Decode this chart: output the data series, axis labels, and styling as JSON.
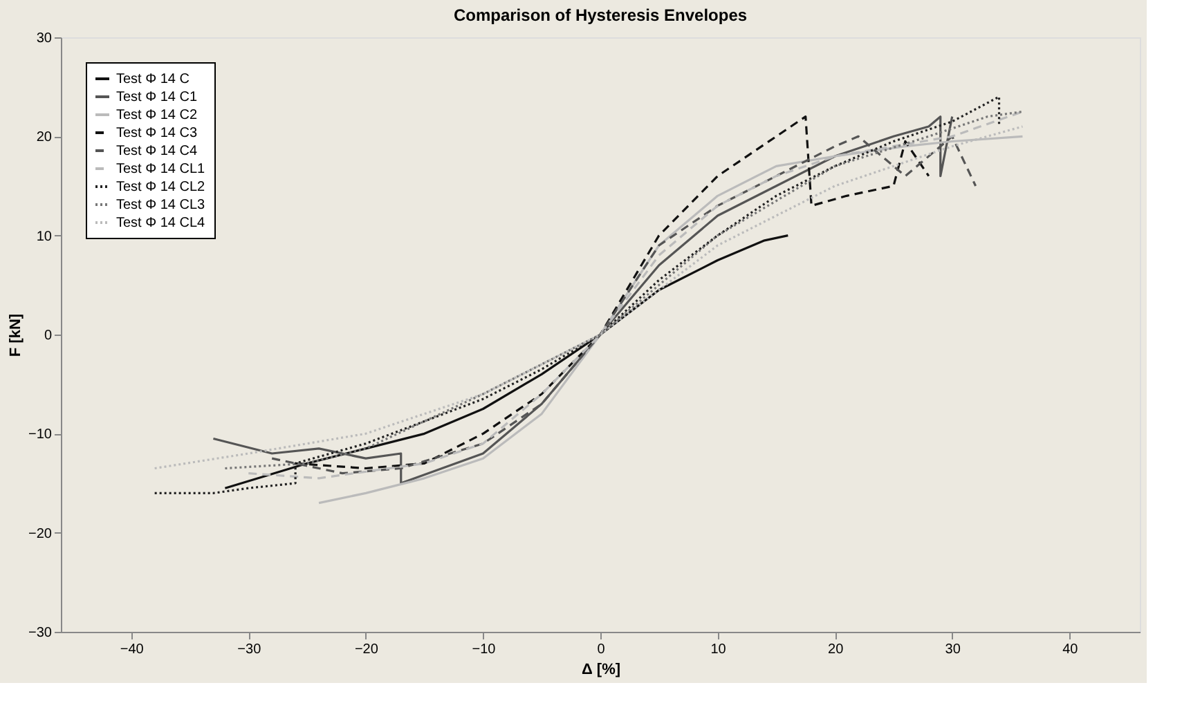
{
  "chart_data": {
    "type": "line",
    "title": "Comparison of Hysteresis Envelopes",
    "xlabel": "Δ [%]",
    "ylabel": "F [kN]",
    "xlim": [
      -46,
      46
    ],
    "xticks": [
      -40,
      -30,
      -20,
      -10,
      0,
      10,
      20,
      30,
      40
    ],
    "ylim": [
      -30,
      30
    ],
    "yticks": [
      -30,
      -20,
      -10,
      0,
      10,
      20,
      30
    ],
    "grid": false,
    "legend": "top left",
    "marker": "none",
    "series": [
      {
        "name": "Test Φ 14 C",
        "color": "#111111",
        "line_style": "solid",
        "x": [
          -32,
          -25,
          -20,
          -15,
          -10,
          -5,
          0,
          5,
          10,
          14,
          16
        ],
        "values": [
          -15.5,
          -13,
          -11.5,
          -10,
          -7.5,
          -4,
          0,
          4.5,
          7.5,
          9.5,
          10
        ]
      },
      {
        "name": "Test Φ 14 C1",
        "color": "#555555",
        "line_style": "solid",
        "x": [
          -33,
          -28,
          -24,
          -20,
          -17,
          -17,
          -10,
          -5,
          0,
          5,
          10,
          15,
          20,
          25,
          28,
          29,
          29,
          30
        ],
        "values": [
          -10.5,
          -12,
          -11.5,
          -12.5,
          -12,
          -15,
          -12,
          -7,
          0,
          7,
          12,
          15,
          18,
          20,
          21,
          22,
          16,
          22
        ]
      },
      {
        "name": "Test Φ 14 C2",
        "color": "#bbbbbb",
        "line_style": "solid",
        "x": [
          -24,
          -20,
          -15,
          -10,
          -5,
          0,
          5,
          10,
          15,
          20,
          26,
          30,
          36
        ],
        "values": [
          -17,
          -16,
          -14.5,
          -12.5,
          -8,
          0,
          9,
          14,
          17,
          18,
          19,
          19.5,
          20
        ]
      },
      {
        "name": "Test Φ 14 C3",
        "color": "#111111",
        "line_style": "dashed",
        "x": [
          -26,
          -20,
          -15,
          -10,
          -5,
          0,
          5,
          10,
          15,
          17.5,
          18,
          21,
          25,
          26,
          28
        ],
        "values": [
          -13,
          -13.5,
          -13,
          -10,
          -6,
          0,
          10,
          16,
          20,
          22,
          13,
          14,
          15,
          19.5,
          16
        ]
      },
      {
        "name": "Test Φ 14 C4",
        "color": "#555555",
        "line_style": "dashed",
        "x": [
          -28,
          -22,
          -17,
          -10,
          -5,
          0,
          5,
          10,
          15,
          20,
          22,
          26,
          30,
          32
        ],
        "values": [
          -12.5,
          -14,
          -13.5,
          -11,
          -7,
          0,
          9,
          13,
          16,
          19,
          20,
          16,
          20,
          15
        ]
      },
      {
        "name": "Test Φ 14 CL1",
        "color": "#bbbbbb",
        "line_style": "dashed",
        "x": [
          -30,
          -24,
          -15,
          -10,
          -5,
          0,
          5,
          10,
          15,
          20,
          25,
          30,
          36
        ],
        "values": [
          -14,
          -14.5,
          -13,
          -11,
          -6,
          0,
          8,
          13,
          16,
          18,
          19,
          20,
          22.5
        ]
      },
      {
        "name": "Test Φ 14 CL2",
        "color": "#222222",
        "line_style": "dotted",
        "x": [
          -38,
          -33,
          -30,
          -26,
          -26,
          -20,
          -10,
          -5,
          0,
          5,
          10,
          15,
          20,
          25,
          30,
          34,
          34
        ],
        "values": [
          -16,
          -16,
          -15.5,
          -15,
          -13,
          -11,
          -6.5,
          -3.5,
          0,
          5.5,
          10,
          14,
          17,
          19.5,
          21.5,
          24,
          21
        ]
      },
      {
        "name": "Test Φ 14 CL3",
        "color": "#777777",
        "line_style": "dotted",
        "x": [
          -32,
          -25,
          -20,
          -10,
          0,
          10,
          20,
          28,
          33,
          36
        ],
        "values": [
          -13.5,
          -13,
          -11.5,
          -6,
          0,
          10,
          17,
          20,
          22,
          22.5
        ]
      },
      {
        "name": "Test Φ 14 CL4",
        "color": "#bbbbbb",
        "line_style": "dotted",
        "x": [
          -38,
          -30,
          -20,
          -10,
          0,
          10,
          20,
          30,
          36
        ],
        "values": [
          -13.5,
          -12,
          -10,
          -6,
          0,
          9,
          15,
          19,
          21
        ]
      }
    ]
  }
}
